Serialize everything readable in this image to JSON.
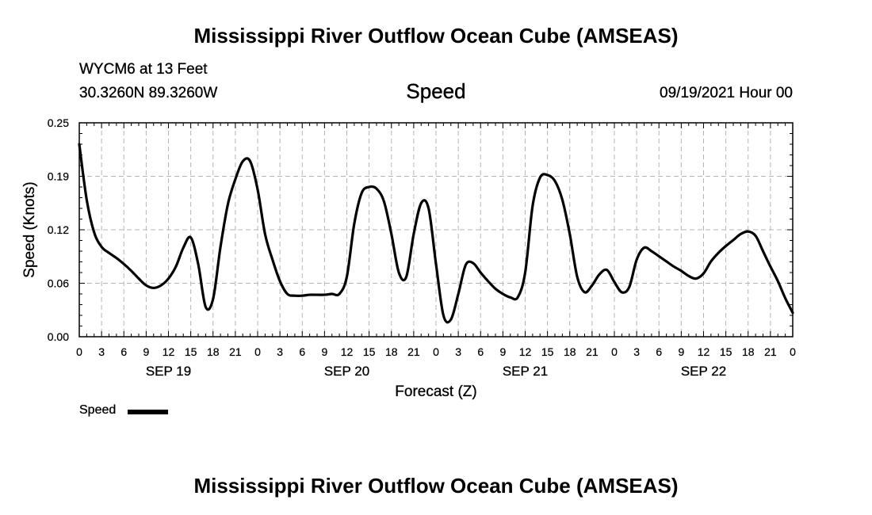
{
  "header": {
    "title": "Mississippi River Outflow Ocean Cube (AMSEAS)",
    "station": "WYCM6 at 13 Feet",
    "coordinates": "30.3260N  89.3260W",
    "variable": "Speed",
    "datetime": "09/19/2021 Hour 00"
  },
  "footer": {
    "title": "Mississippi River Outflow Ocean Cube (AMSEAS)"
  },
  "legend": {
    "label": "Speed",
    "placement": "bottom-left"
  },
  "chart_data": {
    "type": "line",
    "title": "Speed",
    "xlabel": "Forecast (Z)",
    "ylabel": "Speed (Knots)",
    "xunit": "forecast hour",
    "xlim": [
      0,
      96
    ],
    "ylim": [
      0,
      0.25
    ],
    "yticks": [
      "0.00",
      "0.06",
      "0.12",
      "0.19",
      "0.25"
    ],
    "xticks": [
      "0",
      "3",
      "6",
      "9",
      "12",
      "15",
      "18",
      "21",
      "0",
      "3",
      "6",
      "9",
      "12",
      "15",
      "18",
      "21",
      "0",
      "3",
      "6",
      "9",
      "12",
      "15",
      "18",
      "21",
      "0",
      "3",
      "6",
      "9",
      "12",
      "15",
      "18",
      "21",
      "0"
    ],
    "day_labels": [
      {
        "hour": 12,
        "label": "SEP 19"
      },
      {
        "hour": 36,
        "label": "SEP 20"
      },
      {
        "hour": 60,
        "label": "SEP 21"
      },
      {
        "hour": 84,
        "label": "SEP 22"
      }
    ],
    "grid": true,
    "line_color": "#000000",
    "series": [
      {
        "name": "Speed",
        "x": [
          0,
          1,
          2,
          3,
          4,
          5,
          6,
          7,
          8,
          9,
          10,
          11,
          12,
          13,
          14,
          15,
          16,
          17,
          18,
          19,
          20,
          21,
          22,
          23,
          24,
          25,
          26,
          27,
          28,
          29,
          30,
          31,
          32,
          33,
          34,
          35,
          36,
          37,
          38,
          39,
          40,
          41,
          42,
          43,
          44,
          45,
          46,
          47,
          48,
          49,
          50,
          51,
          52,
          53,
          54,
          55,
          56,
          57,
          58,
          59,
          60,
          61,
          62,
          63,
          64,
          65,
          66,
          67,
          68,
          69,
          70,
          71,
          72,
          73,
          74,
          75,
          76,
          77,
          78,
          79,
          80,
          81,
          82,
          83,
          84,
          85,
          86,
          87,
          88,
          89,
          90,
          91,
          92,
          93,
          94,
          95,
          96
        ],
        "values": [
          0.225,
          0.16,
          0.122,
          0.105,
          0.098,
          0.092,
          0.085,
          0.077,
          0.068,
          0.06,
          0.057,
          0.06,
          0.068,
          0.082,
          0.104,
          0.116,
          0.085,
          0.035,
          0.044,
          0.105,
          0.155,
          0.184,
          0.205,
          0.205,
          0.172,
          0.12,
          0.09,
          0.065,
          0.05,
          0.048,
          0.048,
          0.049,
          0.049,
          0.049,
          0.05,
          0.05,
          0.07,
          0.132,
          0.168,
          0.175,
          0.173,
          0.158,
          0.12,
          0.075,
          0.07,
          0.12,
          0.156,
          0.15,
          0.085,
          0.025,
          0.02,
          0.05,
          0.084,
          0.086,
          0.075,
          0.065,
          0.056,
          0.05,
          0.046,
          0.046,
          0.075,
          0.153,
          0.186,
          0.189,
          0.182,
          0.16,
          0.12,
          0.07,
          0.052,
          0.06,
          0.073,
          0.078,
          0.064,
          0.052,
          0.058,
          0.09,
          0.104,
          0.1,
          0.094,
          0.088,
          0.082,
          0.077,
          0.071,
          0.068,
          0.074,
          0.088,
          0.098,
          0.106,
          0.113,
          0.12,
          0.123,
          0.118,
          0.1,
          0.082,
          0.065,
          0.045,
          0.028
        ]
      }
    ]
  }
}
